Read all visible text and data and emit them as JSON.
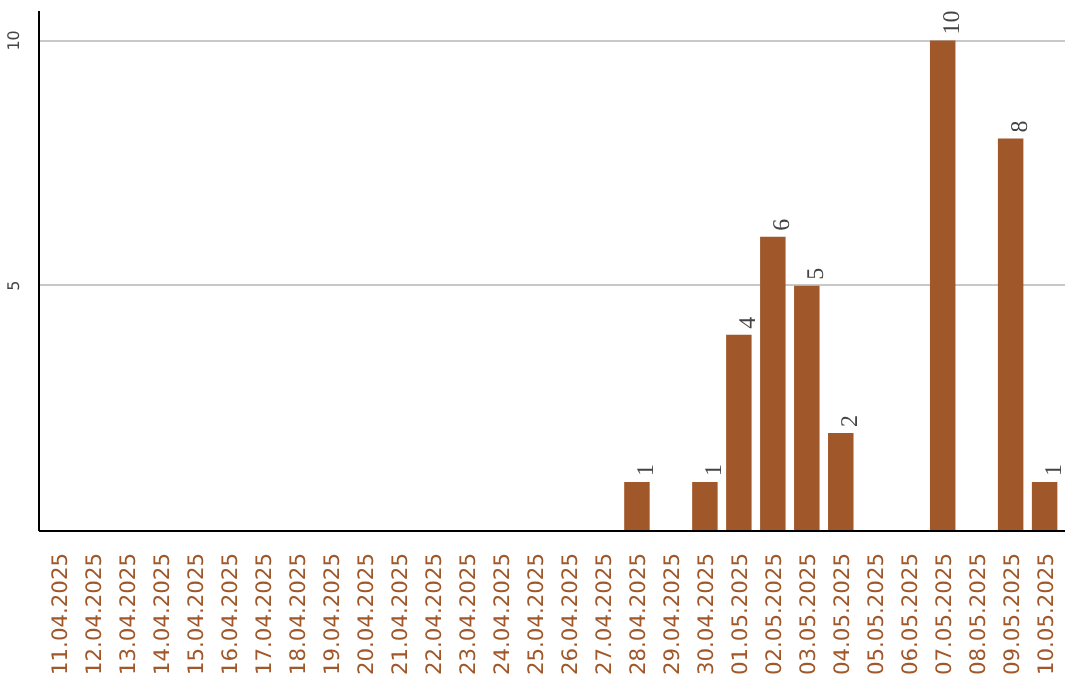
{
  "chart_data": {
    "type": "bar",
    "categories": [
      "11.04.2025",
      "12.04.2025",
      "13.04.2025",
      "14.04.2025",
      "15.04.2025",
      "16.04.2025",
      "17.04.2025",
      "18.04.2025",
      "19.04.2025",
      "20.04.2025",
      "21.04.2025",
      "22.04.2025",
      "23.04.2025",
      "24.04.2025",
      "25.04.2025",
      "26.04.2025",
      "27.04.2025",
      "28.04.2025",
      "29.04.2025",
      "30.04.2025",
      "01.05.2025",
      "02.05.2025",
      "03.05.2025",
      "04.05.2025",
      "05.05.2025",
      "06.05.2025",
      "07.05.2025",
      "08.05.2025",
      "09.05.2025",
      "10.05.2025"
    ],
    "values": [
      0,
      0,
      0,
      0,
      0,
      0,
      0,
      0,
      0,
      0,
      0,
      0,
      0,
      0,
      0,
      0,
      0,
      1,
      0,
      1,
      4,
      6,
      5,
      2,
      0,
      0,
      10,
      0,
      8,
      1
    ],
    "value_labels": [
      null,
      null,
      null,
      null,
      null,
      null,
      null,
      null,
      null,
      null,
      null,
      null,
      null,
      null,
      null,
      null,
      null,
      "1",
      null,
      "1",
      "4",
      "6",
      "5",
      "2",
      null,
      null,
      "10",
      null,
      "8",
      "1"
    ],
    "color": "#a0572a",
    "ylim": [
      0,
      10.6
    ],
    "yticks": [
      5,
      10
    ],
    "grid": "y"
  }
}
